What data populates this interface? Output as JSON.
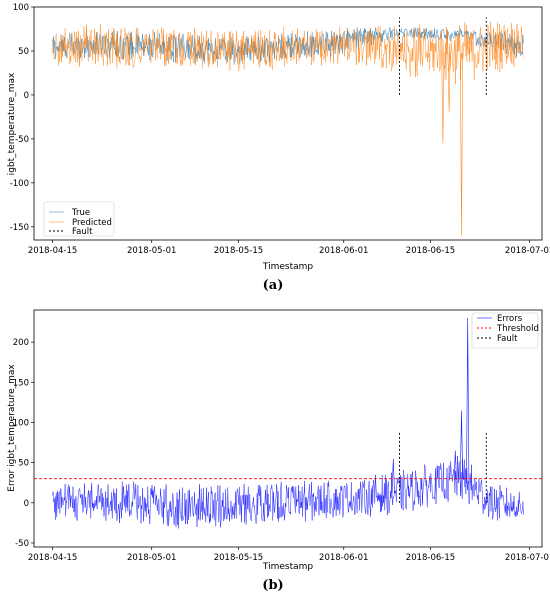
{
  "chart_data": [
    {
      "type": "line",
      "panel_label": "(a)",
      "xlabel": "Timestamp",
      "ylabel": "igbt_temperature_max",
      "x_ticks": [
        "2018-04-15",
        "2018-05-01",
        "2018-05-15",
        "2018-06-01",
        "2018-06-15",
        "2018-07-01"
      ],
      "x_range": [
        "2018-04-12",
        "2018-07-03"
      ],
      "y_ticks": [
        -150,
        -100,
        -50,
        0,
        50,
        100
      ],
      "ylim": [
        -165,
        100
      ],
      "legend": {
        "placement": "lower-left",
        "entries": [
          "True",
          "Predicted",
          "Fault"
        ]
      },
      "series": [
        {
          "name": "True",
          "color": "#1f77b4",
          "x": [
            "2018-04-15",
            "2018-04-25",
            "2018-05-05",
            "2018-05-15",
            "2018-05-25",
            "2018-06-01",
            "2018-06-10",
            "2018-06-20",
            "2018-06-30"
          ],
          "y_low": [
            38,
            40,
            36,
            33,
            40,
            45,
            65,
            60,
            40
          ],
          "y_high": [
            72,
            75,
            70,
            68,
            72,
            78,
            78,
            76,
            70
          ]
        },
        {
          "name": "Predicted",
          "color": "#ff7f0e",
          "x": [
            "2018-04-15",
            "2018-04-25",
            "2018-05-05",
            "2018-05-15",
            "2018-05-25",
            "2018-06-01",
            "2018-06-10",
            "2018-06-20",
            "2018-06-30"
          ],
          "y_low": [
            30,
            28,
            28,
            25,
            30,
            35,
            20,
            10,
            35
          ],
          "y_high": [
            80,
            82,
            78,
            75,
            80,
            80,
            80,
            85,
            88
          ],
          "spikes": [
            {
              "x": "2018-06-17",
              "y": -55
            },
            {
              "x": "2018-06-20",
              "y": -160
            },
            {
              "x": "2018-06-18",
              "y": -20
            }
          ]
        }
      ],
      "fault_lines": [
        {
          "x": "2018-06-10",
          "y_from": 0,
          "y_to": 88
        },
        {
          "x": "2018-06-24",
          "y_from": 0,
          "y_to": 88
        }
      ]
    },
    {
      "type": "line",
      "panel_label": "(b)",
      "xlabel": "Timestamp",
      "ylabel": "Error igbt_temperature_max",
      "x_ticks": [
        "2018-04-15",
        "2018-05-01",
        "2018-05-15",
        "2018-06-01",
        "2018-06-15",
        "2018-07-01"
      ],
      "x_range": [
        "2018-04-12",
        "2018-07-03"
      ],
      "y_ticks": [
        -50,
        0,
        50,
        100,
        150,
        200
      ],
      "ylim": [
        -55,
        240
      ],
      "threshold": 30,
      "legend": {
        "placement": "top-right",
        "entries": [
          "Errors",
          "Threshold",
          "Fault"
        ]
      },
      "series": [
        {
          "name": "Errors",
          "color": "#0000ff",
          "x": [
            "2018-04-15",
            "2018-04-25",
            "2018-05-05",
            "2018-05-15",
            "2018-05-25",
            "2018-06-01",
            "2018-06-10",
            "2018-06-15",
            "2018-06-20",
            "2018-06-25",
            "2018-06-30"
          ],
          "y_low": [
            -25,
            -25,
            -35,
            -30,
            -25,
            -20,
            -15,
            -5,
            0,
            -25,
            -25
          ],
          "y_high": [
            30,
            28,
            25,
            25,
            28,
            30,
            40,
            50,
            60,
            25,
            15
          ],
          "spikes": [
            {
              "x": "2018-06-21",
              "y": 230
            },
            {
              "x": "2018-06-20",
              "y": 115
            },
            {
              "x": "2018-06-19",
              "y": 65
            },
            {
              "x": "2018-06-09",
              "y": 55
            }
          ]
        }
      ],
      "fault_lines": [
        {
          "x": "2018-06-10",
          "y_from": 0,
          "y_to": 88
        },
        {
          "x": "2018-06-24",
          "y_from": 0,
          "y_to": 88
        }
      ]
    }
  ],
  "legend_labels": {
    "a_true": "True",
    "a_predicted": "Predicted",
    "a_fault": "Fault",
    "b_errors": "Errors",
    "b_threshold": "Threshold",
    "b_fault": "Fault"
  }
}
